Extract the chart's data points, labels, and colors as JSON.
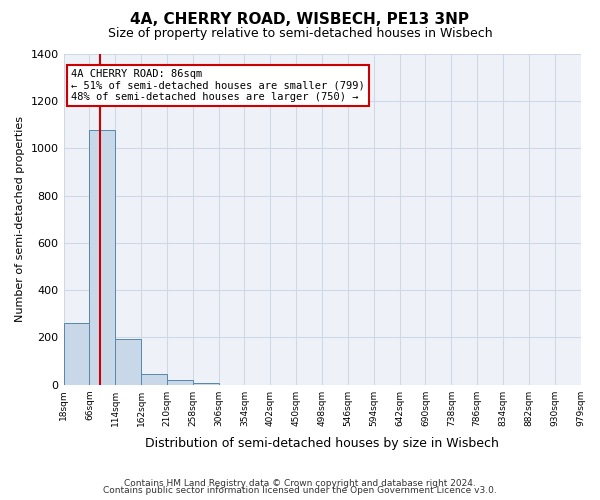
{
  "title": "4A, CHERRY ROAD, WISBECH, PE13 3NP",
  "subtitle": "Size of property relative to semi-detached houses in Wisbech",
  "xlabel": "Distribution of semi-detached houses by size in Wisbech",
  "ylabel": "Number of semi-detached properties",
  "footnote1": "Contains HM Land Registry data © Crown copyright and database right 2024.",
  "footnote2": "Contains public sector information licensed under the Open Government Licence v3.0.",
  "bin_labels": [
    "18sqm",
    "66sqm",
    "114sqm",
    "162sqm",
    "210sqm",
    "258sqm",
    "306sqm",
    "354sqm",
    "402sqm",
    "450sqm",
    "498sqm",
    "546sqm",
    "594sqm",
    "642sqm",
    "690sqm",
    "738sqm",
    "786sqm",
    "834sqm",
    "882sqm",
    "930sqm",
    "979sqm"
  ],
  "bar_heights": [
    260,
    1080,
    195,
    45,
    20,
    5,
    0,
    0,
    0,
    0,
    0,
    0,
    0,
    0,
    0,
    0,
    0,
    0,
    0,
    0
  ],
  "bar_color": "#c8d8e8",
  "bar_edge_color": "#5588aa",
  "ylim": [
    0,
    1400
  ],
  "yticks": [
    0,
    200,
    400,
    600,
    800,
    1000,
    1200,
    1400
  ],
  "property_size": 86,
  "property_label": "4A CHERRY ROAD: 86sqm",
  "pct_smaller": 51,
  "n_smaller": 799,
  "pct_larger": 48,
  "n_larger": 750,
  "vline_color": "#cc0000",
  "annotation_box_color": "#cc0000",
  "grid_color": "#d0d8e8",
  "background_color": "#eef2f8"
}
